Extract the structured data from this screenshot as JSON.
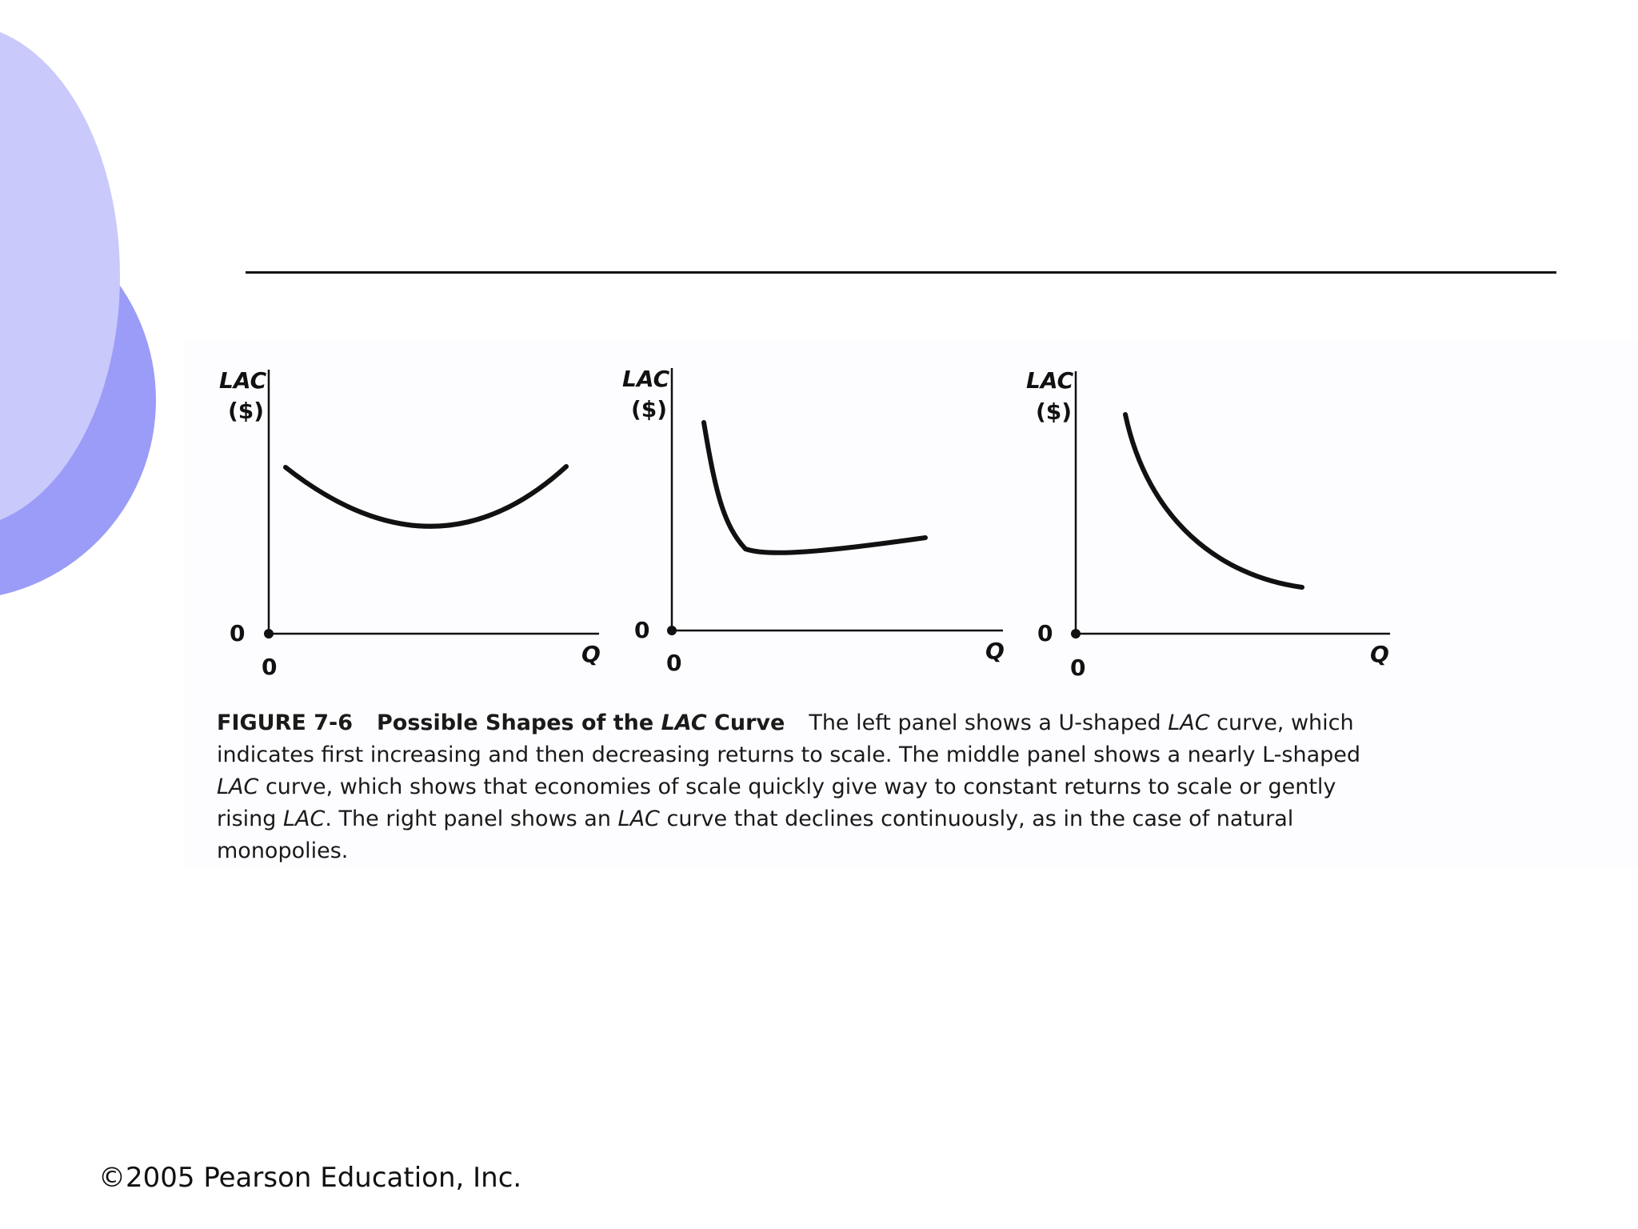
{
  "slide": {
    "footer": "©2005 Pearson Education, Inc."
  },
  "colors": {
    "deco_back": "#9b9bf8",
    "deco_front": "#c9c9fb",
    "curve": "#111111"
  },
  "figure": {
    "panels": [
      {
        "id": "left",
        "ylabel_line1": "LAC",
        "ylabel_line2": "($)",
        "y_origin": "0",
        "x_origin": "0",
        "xlabel": "Q",
        "shape": "U-shaped"
      },
      {
        "id": "middle",
        "ylabel_line1": "LAC",
        "ylabel_line2": "($)",
        "y_origin": "0",
        "x_origin": "0",
        "xlabel": "Q",
        "shape": "nearly L-shaped"
      },
      {
        "id": "right",
        "ylabel_line1": "LAC",
        "ylabel_line2": "($)",
        "y_origin": "0",
        "x_origin": "0",
        "xlabel": "Q",
        "shape": "continuously declining"
      }
    ],
    "caption": {
      "number": "FIGURE 7-6",
      "title_prefix": "Possible Shapes of the ",
      "title_italic": "LAC",
      "title_suffix": " Curve",
      "s1": "The left panel shows a U-shaped ",
      "s1_i": "LAC",
      "s2": " curve, which indicates first increasing and then decreasing returns to scale. The middle panel shows a nearly L-shaped ",
      "s2_i": "LAC",
      "s3": " curve, which shows that economies of scale quickly give way to constant returns to scale or gently rising ",
      "s3_i": "LAC",
      "s4": ". The right panel shows an ",
      "s4_i": "LAC",
      "s5": " curve that declines continuously, as in the case of natural monopolies."
    }
  }
}
